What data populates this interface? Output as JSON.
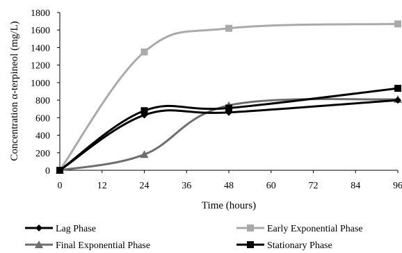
{
  "chart_data": {
    "type": "line",
    "title": "",
    "xlabel": "Time (hours)",
    "ylabel": "Concentration α-terpineol (mg/L)",
    "x": [
      0,
      24,
      48,
      96
    ],
    "xticks": [
      "0",
      "12",
      "24",
      "36",
      "48",
      "60",
      "72",
      "84",
      "96"
    ],
    "yticks": [
      "0",
      "200",
      "400",
      "600",
      "800",
      "1000",
      "1200",
      "1400",
      "1600",
      "1800"
    ],
    "xlim": [
      0,
      96
    ],
    "ylim": [
      0,
      1800
    ],
    "grid": false,
    "legend_position": "bottom",
    "series": [
      {
        "name": "Lag Phase",
        "values": [
          0,
          630,
          660,
          800
        ],
        "color": "#000000",
        "marker": "diamond"
      },
      {
        "name": "Early Exponential Phase",
        "values": [
          0,
          1350,
          1620,
          1670
        ],
        "color": "#aaaaaa",
        "marker": "square"
      },
      {
        "name": "Final Exponential Phase",
        "values": [
          0,
          180,
          740,
          810
        ],
        "color": "#6e6e6e",
        "marker": "triangle"
      },
      {
        "name": "Stationary Phase",
        "values": [
          0,
          680,
          710,
          935
        ],
        "color": "#000000",
        "marker": "square"
      }
    ]
  }
}
